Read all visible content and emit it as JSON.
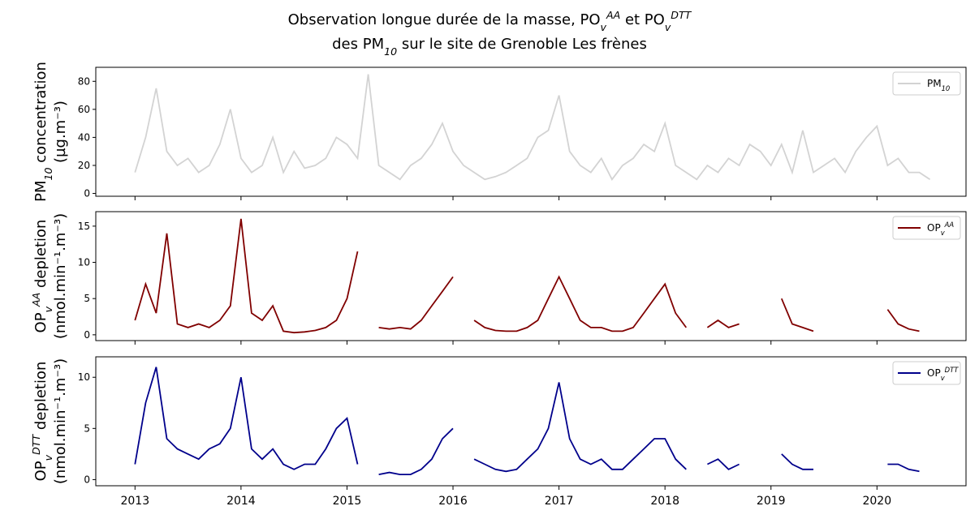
{
  "title": [
    [
      {
        "text": "Observation longue durée de la masse, PO"
      },
      {
        "sub": "v",
        "sup": "AA"
      },
      {
        "text": " et PO"
      },
      {
        "sub": "v",
        "sup": "DTT"
      }
    ],
    [
      {
        "text": "des PM"
      },
      {
        "sub": "10"
      },
      {
        "text": " sur le site de Grenoble Les frènes"
      }
    ]
  ],
  "chart_data": [
    {
      "type": "line",
      "ylabel": [
        [
          {
            "text": "PM"
          },
          {
            "sub": "10"
          },
          {
            "text": " concentration"
          }
        ],
        "(µg.m⁻³)"
      ],
      "x": [
        2013.0,
        2013.1,
        2013.2,
        2013.3,
        2013.4,
        2013.5,
        2013.6,
        2013.7,
        2013.8,
        2013.9,
        2014.0,
        2014.1,
        2014.2,
        2014.3,
        2014.4,
        2014.5,
        2014.6,
        2014.7,
        2014.8,
        2014.9,
        2015.0,
        2015.1,
        2015.2,
        2015.3,
        2015.4,
        2015.5,
        2015.6,
        2015.7,
        2015.8,
        2015.9,
        2016.0,
        2016.1,
        2016.2,
        2016.3,
        2016.4,
        2016.5,
        2016.6,
        2016.7,
        2016.8,
        2016.9,
        2017.0,
        2017.1,
        2017.2,
        2017.3,
        2017.4,
        2017.5,
        2017.6,
        2017.7,
        2017.8,
        2017.9,
        2018.0,
        2018.1,
        2018.2,
        2018.3,
        2018.4,
        2018.5,
        2018.6,
        2018.7,
        2018.8,
        2018.9,
        2019.0,
        2019.1,
        2019.2,
        2019.3,
        2019.4,
        2019.5,
        2019.6,
        2019.7,
        2019.8,
        2019.9,
        2020.0,
        2020.1,
        2020.2,
        2020.3,
        2020.4,
        2020.5
      ],
      "series": [
        {
          "name": [
            {
              "text": "PM"
            },
            {
              "sub": "10"
            }
          ],
          "color": "#d3d3d3",
          "values": [
            15,
            40,
            75,
            30,
            20,
            25,
            15,
            20,
            35,
            60,
            25,
            15,
            20,
            40,
            15,
            30,
            18,
            20,
            25,
            40,
            35,
            25,
            85,
            20,
            15,
            10,
            20,
            25,
            35,
            50,
            30,
            20,
            15,
            10,
            12,
            15,
            20,
            25,
            40,
            45,
            70,
            30,
            20,
            15,
            25,
            10,
            20,
            25,
            35,
            30,
            50,
            20,
            15,
            10,
            20,
            15,
            25,
            20,
            35,
            30,
            20,
            35,
            15,
            45,
            15,
            20,
            25,
            15,
            30,
            40,
            48,
            20,
            25,
            15,
            15,
            10
          ]
        }
      ],
      "xlim": [
        2012.63,
        2020.84
      ],
      "xticks": [
        2013,
        2014,
        2015,
        2016,
        2017,
        2018,
        2019,
        2020
      ],
      "ylim": [
        -2,
        90
      ],
      "yticks": [
        0,
        20,
        40,
        60,
        80
      ],
      "legend": "upper right"
    },
    {
      "type": "line",
      "ylabel": [
        [
          {
            "text": "OP"
          },
          {
            "sub": "v",
            "sup": "AA"
          },
          {
            "text": " depletion"
          }
        ],
        "(nmol.min⁻¹.m⁻³)"
      ],
      "x": [
        2013.0,
        2013.1,
        2013.2,
        2013.3,
        2013.4,
        2013.5,
        2013.6,
        2013.7,
        2013.8,
        2013.9,
        2014.0,
        2014.1,
        2014.2,
        2014.3,
        2014.4,
        2014.5,
        2014.6,
        2014.7,
        2014.8,
        2014.9,
        2015.0,
        2015.1,
        2015.2,
        2015.3,
        2015.4,
        2015.5,
        2015.6,
        2015.7,
        2015.8,
        2015.9,
        2016.0,
        2016.1,
        2016.2,
        2016.3,
        2016.4,
        2016.5,
        2016.6,
        2016.7,
        2016.8,
        2016.9,
        2017.0,
        2017.1,
        2017.2,
        2017.3,
        2017.4,
        2017.5,
        2017.6,
        2017.7,
        2017.8,
        2017.9,
        2018.0,
        2018.1,
        2018.2,
        2018.3,
        2018.4,
        2018.5,
        2018.6,
        2018.7,
        2018.8,
        2018.9,
        2019.0,
        2019.1,
        2019.2,
        2019.3,
        2019.4,
        2019.5,
        2019.6,
        2019.7,
        2019.8,
        2019.9,
        2020.0,
        2020.1,
        2020.2,
        2020.3,
        2020.4,
        2020.5
      ],
      "series": [
        {
          "name": [
            {
              "text": "OP"
            },
            {
              "sub": "v",
              "sup": "AA"
            }
          ],
          "color": "#800000",
          "values": [
            2,
            7,
            3,
            14,
            1.5,
            1,
            1.5,
            1,
            2,
            4,
            16,
            3,
            2,
            4,
            0.5,
            0.3,
            0.4,
            0.6,
            1,
            2,
            5,
            11.5,
            null,
            1,
            0.8,
            1,
            0.8,
            2,
            4,
            6,
            8,
            null,
            2,
            1,
            0.6,
            0.5,
            0.5,
            1,
            2,
            5,
            8,
            5,
            2,
            1,
            1,
            0.5,
            0.5,
            1,
            3,
            5,
            7,
            3,
            1,
            null,
            1,
            2,
            1,
            1.5,
            null,
            null,
            null,
            5,
            1.5,
            1,
            0.5,
            null,
            null,
            null,
            null,
            null,
            null,
            3.5,
            1.5,
            0.8,
            0.5,
            null
          ]
        }
      ],
      "xlim": [
        2012.63,
        2020.84
      ],
      "xticks": [
        2013,
        2014,
        2015,
        2016,
        2017,
        2018,
        2019,
        2020
      ],
      "ylim": [
        -0.8,
        17
      ],
      "yticks": [
        0,
        5,
        10,
        15
      ],
      "legend": "upper right"
    },
    {
      "type": "line",
      "ylabel": [
        [
          {
            "text": "OP"
          },
          {
            "sub": "v",
            "sup": "DTT"
          },
          {
            "text": " depletion"
          }
        ],
        "(nmol.min⁻¹.m⁻³)"
      ],
      "x": [
        2013.0,
        2013.1,
        2013.2,
        2013.3,
        2013.4,
        2013.5,
        2013.6,
        2013.7,
        2013.8,
        2013.9,
        2014.0,
        2014.1,
        2014.2,
        2014.3,
        2014.4,
        2014.5,
        2014.6,
        2014.7,
        2014.8,
        2014.9,
        2015.0,
        2015.1,
        2015.2,
        2015.3,
        2015.4,
        2015.5,
        2015.6,
        2015.7,
        2015.8,
        2015.9,
        2016.0,
        2016.1,
        2016.2,
        2016.3,
        2016.4,
        2016.5,
        2016.6,
        2016.7,
        2016.8,
        2016.9,
        2017.0,
        2017.1,
        2017.2,
        2017.3,
        2017.4,
        2017.5,
        2017.6,
        2017.7,
        2017.8,
        2017.9,
        2018.0,
        2018.1,
        2018.2,
        2018.3,
        2018.4,
        2018.5,
        2018.6,
        2018.7,
        2018.8,
        2018.9,
        2019.0,
        2019.1,
        2019.2,
        2019.3,
        2019.4,
        2019.5,
        2019.6,
        2019.7,
        2019.8,
        2019.9,
        2020.0,
        2020.1,
        2020.2,
        2020.3,
        2020.4,
        2020.5
      ],
      "series": [
        {
          "name": [
            {
              "text": "OP"
            },
            {
              "sub": "v",
              "sup": "DTT"
            }
          ],
          "color": "#00008b",
          "values": [
            1.5,
            7.5,
            11,
            4,
            3,
            2.5,
            2,
            3,
            3.5,
            5,
            10,
            3,
            2,
            3,
            1.5,
            1,
            1.5,
            1.5,
            3,
            5,
            6,
            1.5,
            null,
            0.5,
            0.7,
            0.5,
            0.5,
            1,
            2,
            4,
            5,
            null,
            2,
            1.5,
            1,
            0.8,
            1,
            2,
            3,
            5,
            9.5,
            4,
            2,
            1.5,
            2,
            1,
            1,
            2,
            3,
            4,
            4,
            2,
            1,
            null,
            1.5,
            2,
            1,
            1.5,
            null,
            null,
            null,
            2.5,
            1.5,
            1,
            1,
            null,
            null,
            null,
            null,
            null,
            null,
            1.5,
            1.5,
            1,
            0.8,
            null
          ]
        }
      ],
      "xlim": [
        2012.63,
        2020.84
      ],
      "xticks": [
        2013,
        2014,
        2015,
        2016,
        2017,
        2018,
        2019,
        2020
      ],
      "ylim": [
        -0.6,
        12
      ],
      "yticks": [
        0,
        5,
        10
      ],
      "legend": "upper right",
      "show_xticklabels": true
    }
  ]
}
